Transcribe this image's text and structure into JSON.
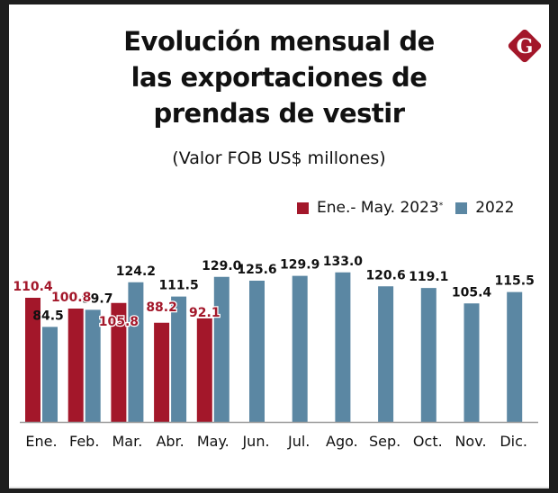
{
  "header": {
    "title_lines": [
      "Evolución mensual de",
      "las exportaciones de",
      "prendas de vestir"
    ],
    "subtitle": "(Valor FOB US$ millones)",
    "logo_icon": "g-diamond-logo-icon",
    "logo_letter": "G"
  },
  "legend": {
    "items": [
      {
        "label": "Ene.- May. 2023",
        "marker": "*",
        "color": "#a3172a"
      },
      {
        "label": "2022",
        "color": "#5b87a3"
      }
    ]
  },
  "colors": {
    "series_2023": "#a3172a",
    "series_2022": "#5b87a3",
    "label_2022": "#111111",
    "axis": "#9a9a9a"
  },
  "chart_data": {
    "type": "bar",
    "title": "Evolución mensual de las exportaciones de prendas de vestir",
    "subtitle": "(Valor FOB US$ millones)",
    "xlabel": "",
    "ylabel": "",
    "ylim": [
      0,
      140
    ],
    "grid": false,
    "legend_position": "top-right",
    "categories": [
      "Ene.",
      "Feb.",
      "Mar.",
      "Abr.",
      "May.",
      "Jun.",
      "Jul.",
      "Ago.",
      "Sep.",
      "Oct.",
      "Nov.",
      "Dic."
    ],
    "series": [
      {
        "name": "Ene.- May. 2023*",
        "color": "#a3172a",
        "values": [
          110.4,
          100.8,
          105.8,
          88.2,
          92.1,
          null,
          null,
          null,
          null,
          null,
          null,
          null
        ],
        "labels": [
          "110.4",
          "100.8",
          "105.8",
          "88.2",
          "92.1"
        ]
      },
      {
        "name": "2022",
        "color": "#5b87a3",
        "values": [
          84.5,
          99.7,
          124.2,
          111.5,
          129.0,
          125.6,
          129.9,
          133.0,
          120.6,
          119.1,
          105.4,
          115.5
        ],
        "labels": [
          "84.5",
          "99.7",
          "124.2",
          "111.5",
          "129.0",
          "125.6",
          "129.9",
          "133.0",
          "120.6",
          "119.1",
          "105.4",
          "115.5"
        ]
      }
    ]
  }
}
